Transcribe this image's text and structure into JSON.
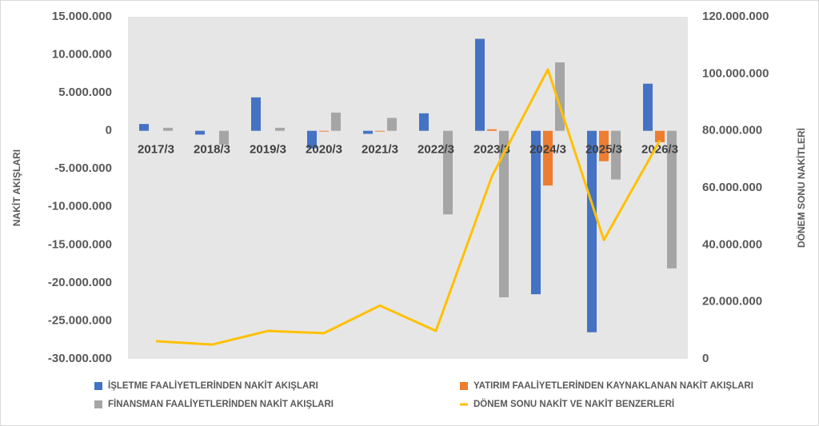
{
  "chart_data": {
    "type": "bar",
    "y_label": "NAKİT AKIŞLARI",
    "y2_label": "DÖNEM SONU NAKİTLERİ",
    "categories": [
      "2017/3",
      "2018/3",
      "2019/3",
      "2020/3",
      "2021/3",
      "2022/3",
      "2023/3",
      "2024/3",
      "2025/3",
      "2026/3"
    ],
    "series": [
      {
        "name": "İŞLETME FAALİYETLERİNDEN NAKİT AKIŞLARI",
        "color": "#4472c4",
        "type": "bar",
        "values": [
          900000,
          -500000,
          4400000,
          -2300000,
          -400000,
          2300000,
          12100000,
          -21500000,
          -26500000,
          6200000
        ]
      },
      {
        "name": "YATIRIM FAALİYETLERİNDEN KAYNAKLANAN NAKİT AKIŞLARI",
        "color": "#ed7d31",
        "type": "bar",
        "values": [
          0,
          0,
          0,
          -100000,
          -100000,
          0,
          200000,
          -7200000,
          -4000000,
          -1500000
        ]
      },
      {
        "name": "FİNANSMAN FAALİYETLERİNDEN NAKİT AKIŞLARI",
        "color": "#a5a5a5",
        "type": "bar",
        "values": [
          400000,
          -1800000,
          400000,
          2400000,
          1700000,
          -11000000,
          -21900000,
          9000000,
          -6400000,
          -18100000
        ]
      },
      {
        "name": "DÖNEM SONU NAKİT VE NAKİT BENZERLERİ",
        "color": "#ffc000",
        "type": "line",
        "axis": "y2",
        "values": [
          6200000,
          5000000,
          9800000,
          9000000,
          18700000,
          9800000,
          64000000,
          101500000,
          41700000,
          76600000
        ]
      }
    ],
    "ylim": [
      -30000000,
      15000000
    ],
    "yticks": [
      {
        "value": -30000000,
        "label": "-30.000.000"
      },
      {
        "value": -25000000,
        "label": "-25.000.000"
      },
      {
        "value": -20000000,
        "label": "-20.000.000"
      },
      {
        "value": -15000000,
        "label": "-15.000.000"
      },
      {
        "value": -10000000,
        "label": "-10.000.000"
      },
      {
        "value": -5000000,
        "label": "-5.000.000"
      },
      0,
      {
        "value": 5000000,
        "label": "5.000.000"
      },
      {
        "value": 10000000,
        "label": "10.000.000"
      },
      {
        "value": 15000000,
        "label": "15.000.000"
      }
    ],
    "y2lim": [
      0,
      120000000
    ],
    "y2ticks": [
      0,
      {
        "value": 20000000,
        "label": "20.000.000"
      },
      {
        "value": 40000000,
        "label": "40.000.000"
      },
      {
        "value": 60000000,
        "label": "60.000.000"
      },
      {
        "value": 80000000,
        "label": "80.000.000"
      },
      {
        "value": 100000000,
        "label": "100.000.000"
      },
      {
        "value": 120000000,
        "label": "120.000.000"
      }
    ],
    "plot_background": "#e7e6e6",
    "legend": "bottom"
  }
}
